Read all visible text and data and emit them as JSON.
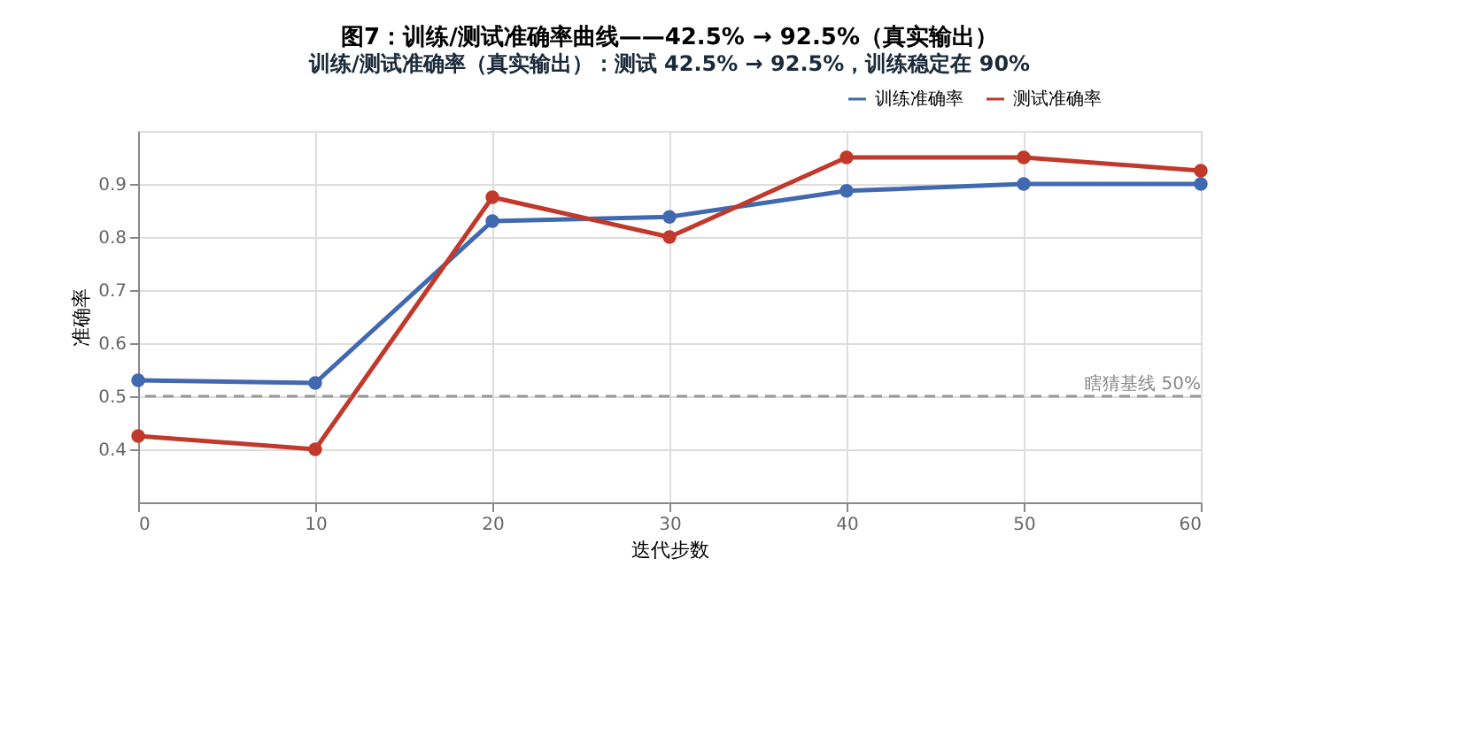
{
  "chart_data": {
    "type": "line",
    "title": "图7：训练/测试准确率曲线——42.5% → 92.5%（真实输出）",
    "subtitle": "训练/测试准确率（真实输出）：测试 42.5% → 92.5%，训练稳定在 90%",
    "xlabel": "迭代步数",
    "ylabel": "准确率",
    "x": [
      0,
      10,
      20,
      30,
      40,
      50,
      60
    ],
    "series": [
      {
        "name": "训练准确率",
        "color": "#4169b0",
        "values": [
          0.53,
          0.525,
          0.83,
          0.838,
          0.887,
          0.9,
          0.9
        ]
      },
      {
        "name": "测试准确率",
        "color": "#c0392b",
        "values": [
          0.425,
          0.4,
          0.875,
          0.8,
          0.95,
          0.95,
          0.925
        ]
      }
    ],
    "xlim": [
      0,
      60
    ],
    "xticks": [
      0,
      10,
      20,
      30,
      40,
      50,
      60
    ],
    "ylim": [
      0.3,
      1.0
    ],
    "yticks": [
      0.4,
      0.5,
      0.6,
      0.7,
      0.8,
      0.9
    ],
    "ref_lines": [
      {
        "axis": "y",
        "value": 0.5,
        "label": "瞎猜基线 50%",
        "color": "#999999",
        "line_style": "dashed"
      }
    ],
    "grid": true,
    "legend": "top right",
    "marker": "circle",
    "line_style": "solid"
  }
}
